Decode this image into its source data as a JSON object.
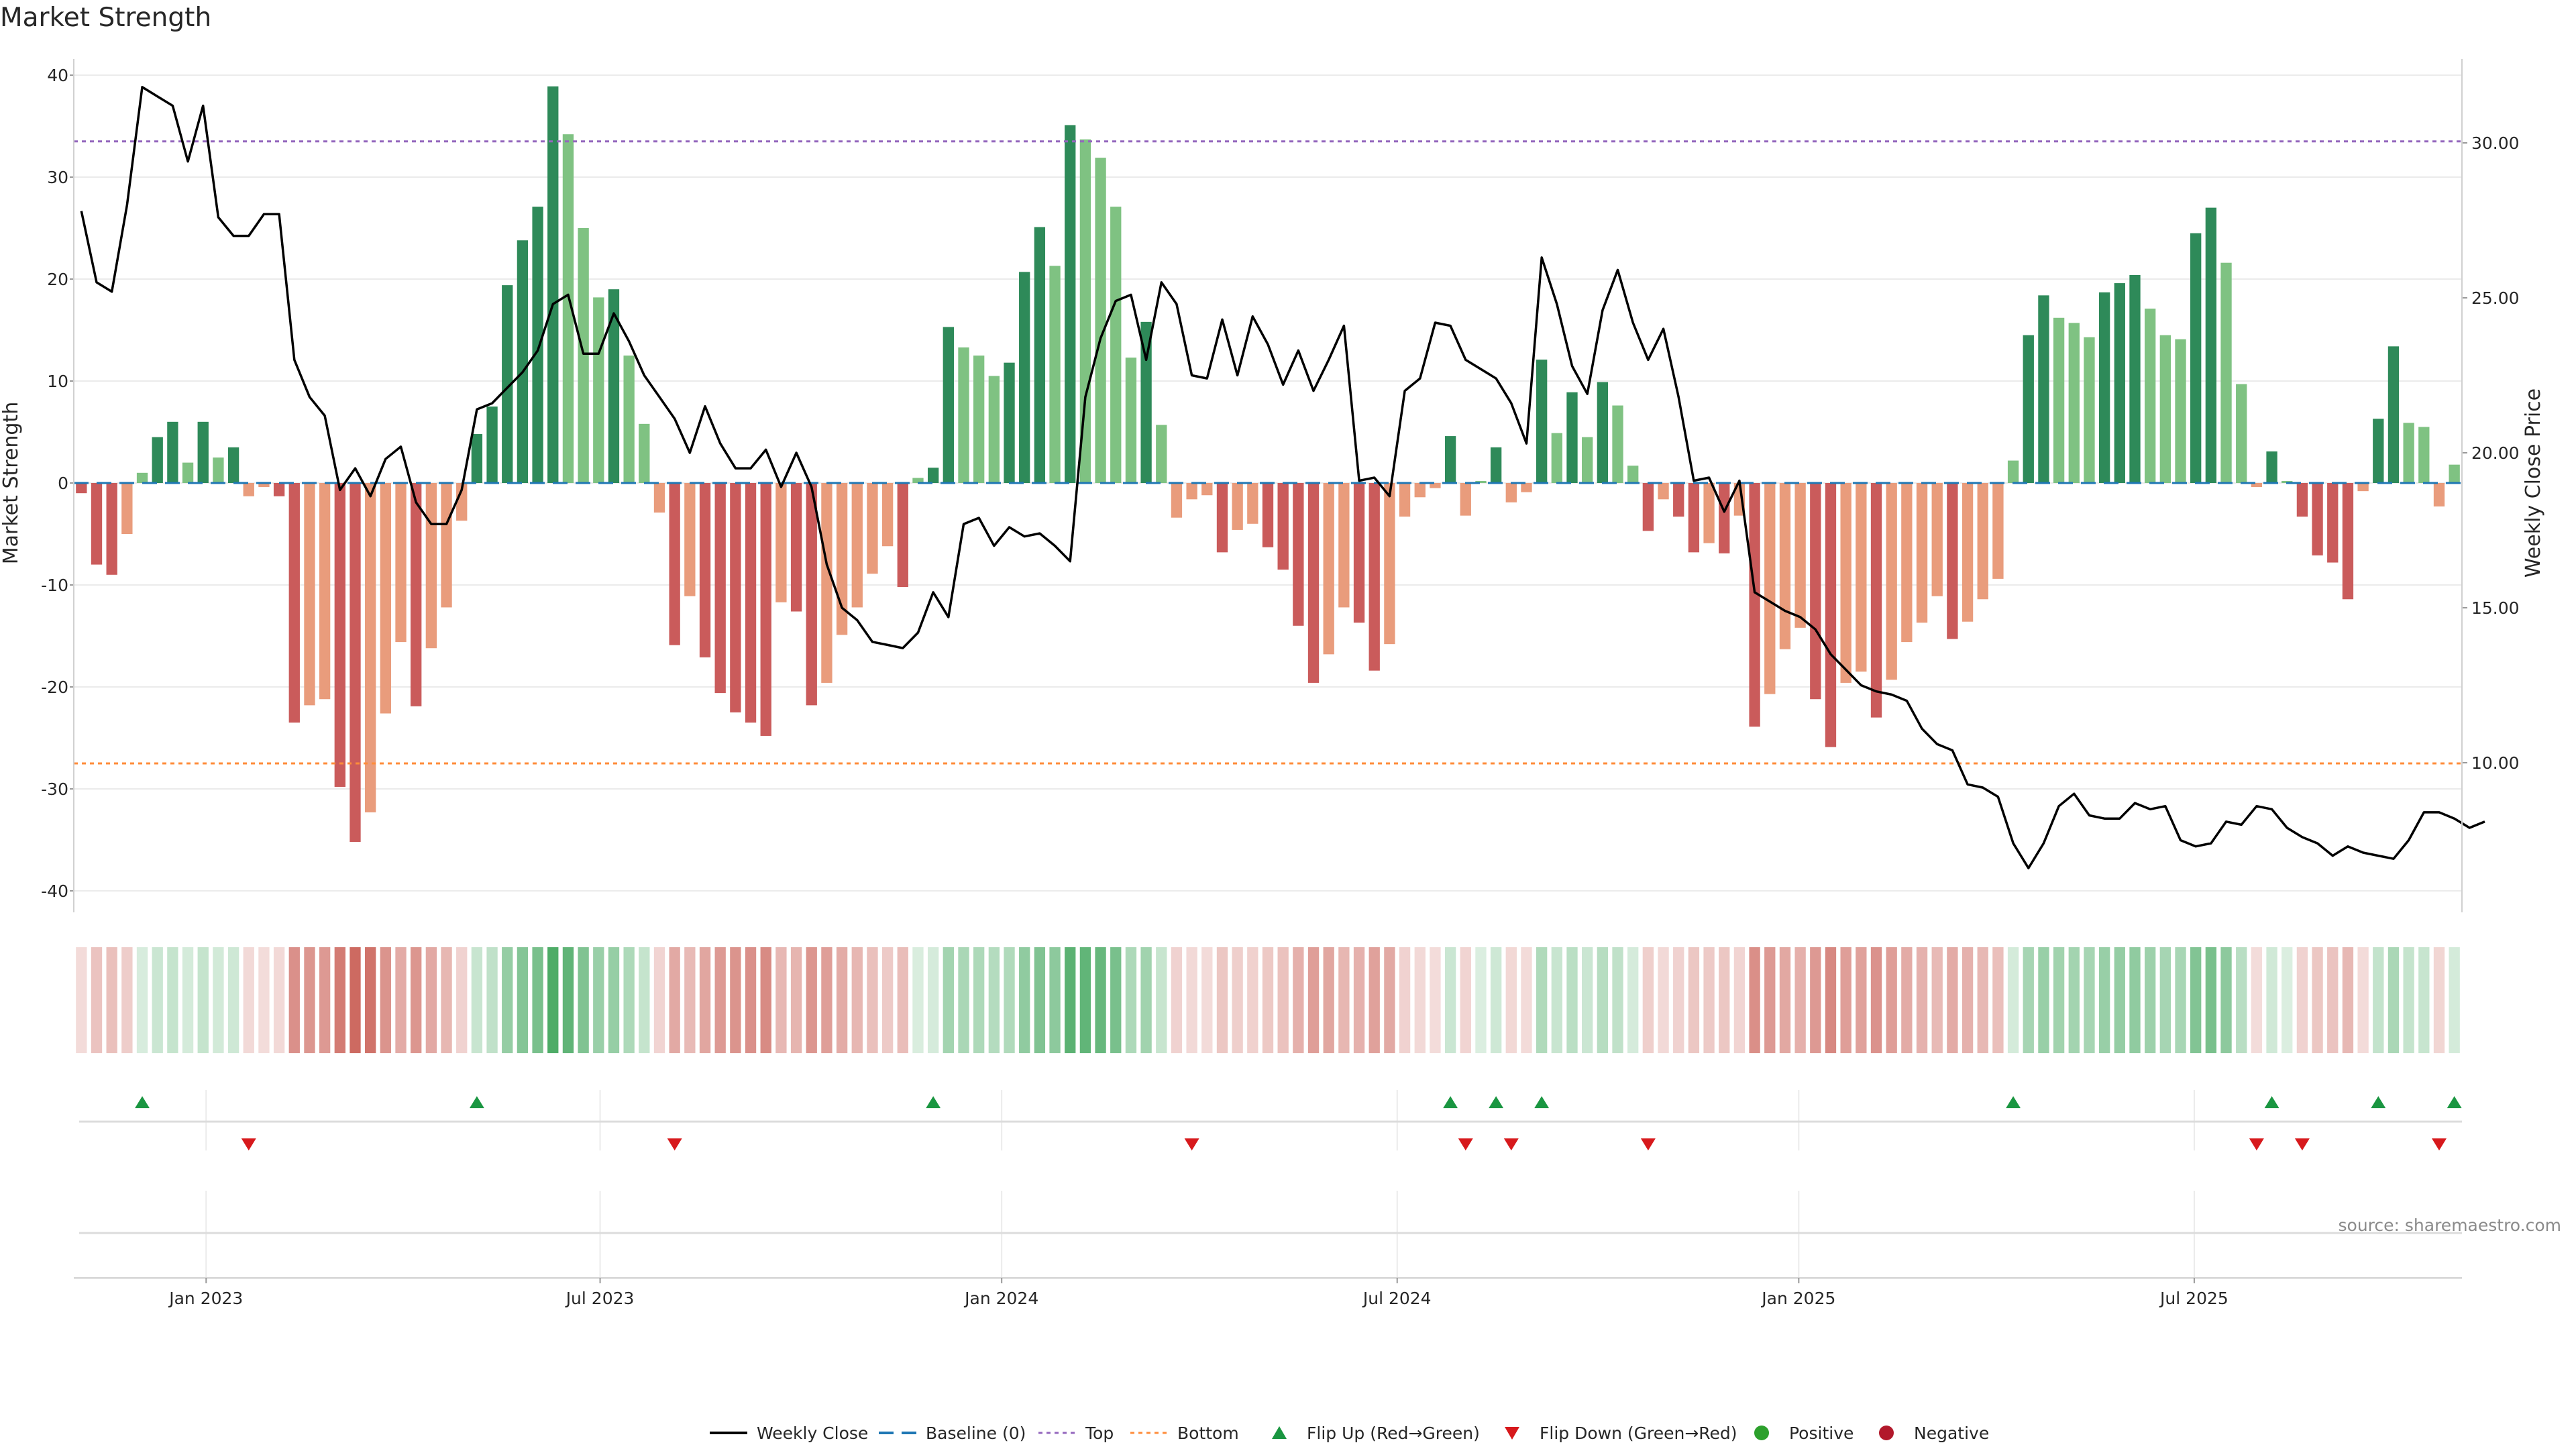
{
  "page": {
    "title": "Market Strength",
    "source": "source: sharemaestro.com"
  },
  "chart_data": {
    "type": "bar",
    "title": "Market Strength",
    "ylabel": "Market Strength",
    "y2label": "Weekly Close Price",
    "ylim": [
      -42,
      42
    ],
    "y2lim": [
      5.0,
      33.0
    ],
    "yticks": [
      40,
      30,
      20,
      10,
      0,
      -10,
      -20,
      -30,
      -40
    ],
    "yticks_right": [
      "30.00",
      "25.00",
      "20.00",
      "15.00",
      "10.00"
    ],
    "yticks_right_values": [
      30,
      25,
      20,
      15,
      10
    ],
    "top_level": 33.5,
    "bottom_level": -27.5,
    "baseline": 0,
    "x_date_labels": [
      "Jan 2023",
      "Jul 2023",
      "Jan 2024",
      "Jul 2024",
      "Jan 2025",
      "Jul 2025"
    ],
    "x_date_label_weeks": [
      8.7,
      34.6,
      61.0,
      87.0,
      113.4,
      139.4
    ],
    "strength": [
      -1,
      -8,
      -9,
      -5,
      1,
      4.5,
      6,
      2,
      6,
      2.5,
      3.5,
      -1.3,
      -0.4,
      -1.3,
      -23.5,
      -21.8,
      -21.2,
      -29.8,
      -35.2,
      -32.3,
      -22.6,
      -15.6,
      -21.9,
      -16.2,
      -12.2,
      -3.7,
      4.8,
      7.5,
      19.4,
      23.8,
      27.1,
      38.9,
      34.2,
      25,
      18.2,
      19,
      12.5,
      5.8,
      -2.9,
      -15.9,
      -11.1,
      -17.1,
      -20.6,
      -22.5,
      -23.5,
      -24.8,
      -11.7,
      -12.6,
      -21.8,
      -19.6,
      -14.9,
      -12.2,
      -8.9,
      -6.2,
      -10.2,
      0.5,
      1.5,
      15.3,
      13.3,
      12.5,
      10.5,
      11.8,
      20.7,
      25.1,
      21.3,
      35.1,
      33.7,
      31.9,
      27.1,
      12.3,
      15.8,
      5.7,
      -3.4,
      -1.6,
      -1.2,
      -6.8,
      -4.6,
      -4,
      -6.3,
      -8.5,
      -14,
      -19.6,
      -16.8,
      -12.2,
      -13.7,
      -18.4,
      -15.8,
      -3.3,
      -1.4,
      -0.5,
      4.6,
      -3.2,
      0.2,
      3.5,
      -1.9,
      -0.9,
      12.1,
      4.9,
      8.9,
      4.5,
      9.9,
      7.6,
      1.7,
      -4.7,
      -1.6,
      -3.3,
      -6.8,
      -5.9,
      -6.9,
      -3.2,
      -23.9,
      -20.7,
      -16.3,
      -14.2,
      -21.2,
      -25.9,
      -19.6,
      -18.5,
      -23,
      -19.3,
      -15.6,
      -13.7,
      -11.1,
      -15.3,
      -13.6,
      -11.4,
      -9.4,
      2.2,
      14.5,
      18.4,
      16.2,
      15.7,
      14.3,
      18.7,
      19.6,
      20.4,
      17.1,
      14.5,
      14.1,
      24.5,
      27,
      21.6,
      9.7,
      -0.4,
      3.1,
      0.2,
      -3.3,
      -7.1,
      -7.8,
      -11.4,
      -0.8,
      6.3,
      13.4,
      5.9,
      5.5,
      -2.3,
      1.8
    ],
    "weekly_close": [
      27.8,
      25.5,
      25.2,
      28.0,
      31.8,
      31.5,
      31.2,
      29.4,
      31.2,
      27.6,
      27.0,
      27.0,
      27.7,
      27.7,
      23.0,
      21.8,
      21.2,
      18.8,
      19.5,
      18.6,
      19.8,
      20.2,
      18.4,
      17.7,
      17.7,
      18.8,
      21.4,
      21.6,
      22.1,
      22.6,
      23.3,
      24.8,
      25.1,
      23.2,
      23.2,
      24.5,
      23.6,
      22.5,
      21.8,
      21.1,
      20.0,
      21.5,
      20.3,
      19.5,
      19.5,
      20.1,
      18.9,
      20.0,
      18.9,
      16.4,
      15.0,
      14.6,
      13.9,
      13.8,
      13.7,
      14.2,
      15.5,
      14.7,
      17.7,
      17.9,
      17.0,
      17.6,
      17.3,
      17.4,
      17.0,
      16.5,
      21.8,
      23.7,
      24.9,
      25.1,
      23.0,
      25.5,
      24.8,
      22.5,
      22.4,
      24.3,
      22.5,
      24.4,
      23.5,
      22.2,
      23.3,
      22.0,
      23.0,
      24.1,
      19.1,
      19.2,
      18.6,
      22.0,
      22.4,
      24.2,
      24.1,
      23.0,
      22.7,
      22.4,
      21.6,
      20.3,
      26.3,
      24.8,
      22.8,
      21.9,
      24.6,
      25.9,
      24.2,
      23.0,
      24.0,
      21.8,
      19.1,
      19.2,
      18.1,
      19.1,
      15.5,
      15.2,
      14.9,
      14.7,
      14.3,
      13.5,
      13.0,
      12.5,
      12.3,
      12.2,
      12.0,
      11.1,
      10.6,
      10.4,
      9.3,
      9.2,
      8.9,
      7.4,
      6.6,
      7.4,
      8.6,
      9.0,
      8.3,
      8.2,
      8.2,
      8.7,
      8.5,
      8.6,
      7.5,
      7.3,
      7.4,
      8.1,
      8.0,
      8.6,
      8.5,
      7.9,
      7.6,
      7.4,
      7.0,
      7.3,
      7.1,
      7.0,
      6.9,
      7.5,
      8.4,
      8.4,
      8.2,
      7.9,
      8.1
    ],
    "flip_up_weeks": [
      4,
      26,
      56,
      90,
      93,
      96,
      127,
      144,
      151,
      156
    ],
    "flip_down_weeks": [
      11,
      39,
      73,
      91,
      94,
      103,
      143,
      146,
      155
    ],
    "colors": {
      "strong_green": "#2e8a59",
      "light_green": "#7fc282",
      "strong_red": "#ca5b5b",
      "light_red": "#e99c7c",
      "price_line": "#000000",
      "baseline": "#1f77b4",
      "top_line": "#9467bd",
      "bottom_line": "#ff8c3a",
      "flip_up": "#1a9641",
      "flip_down": "#d7191c",
      "positive": "#2ca02c",
      "negative": "#b2182b",
      "grid": "#ebebeb"
    },
    "legend": {
      "placement": "bottom-center",
      "items": [
        {
          "key": "weekly_close",
          "label": "Weekly Close"
        },
        {
          "key": "baseline",
          "label": "Baseline (0)"
        },
        {
          "key": "top",
          "label": "Top"
        },
        {
          "key": "bottom",
          "label": "Bottom"
        },
        {
          "key": "flip_up",
          "label": "Flip Up (Red→Green)"
        },
        {
          "key": "flip_down",
          "label": "Flip Down (Green→Red)"
        },
        {
          "key": "positive",
          "label": "Positive"
        },
        {
          "key": "negative",
          "label": "Negative"
        }
      ]
    }
  }
}
